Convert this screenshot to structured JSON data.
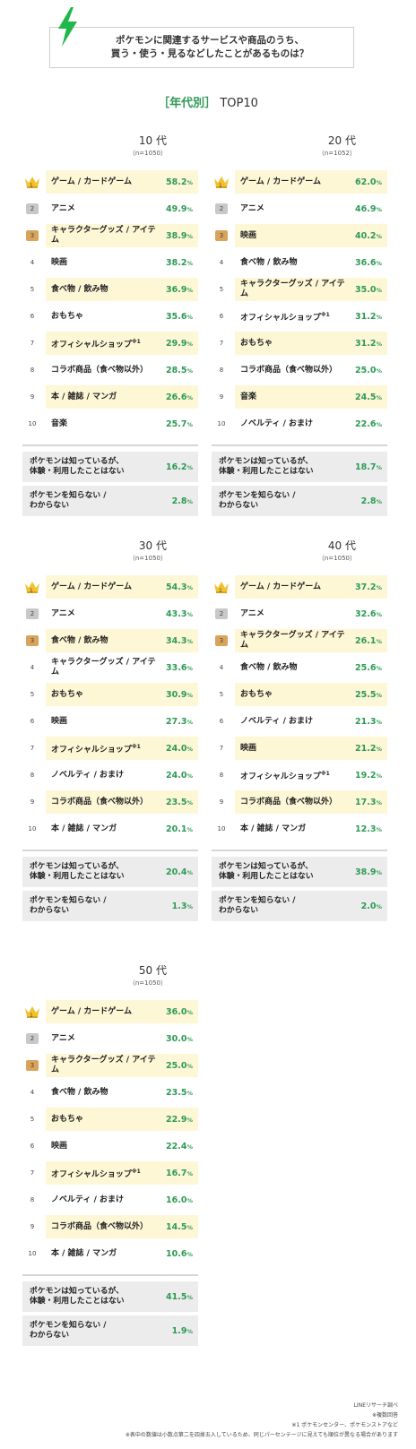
{
  "header": {
    "title_line1": "ポケモンに関連するサービスや商品のうち、",
    "title_line2": "買う・使う・見るなどしたことがあるものは？"
  },
  "section": {
    "bracket_open": "［",
    "bracket_text": "年代別",
    "bracket_close": "］",
    "suffix": "TOP10"
  },
  "blocks": [
    {
      "decade": "10 代",
      "n": "（n=1050）",
      "rows": [
        {
          "rank": "1",
          "label": "ゲーム / カードゲーム",
          "sup": "",
          "value": "58.2",
          "unit": "%",
          "hl": true
        },
        {
          "rank": "2",
          "label": "アニメ",
          "sup": "",
          "value": "49.9",
          "unit": "%",
          "hl": false
        },
        {
          "rank": "3",
          "label": "キャラクターグッズ / アイテム",
          "sup": "",
          "value": "38.9",
          "unit": "%",
          "hl": true
        },
        {
          "rank": "4",
          "label": "映画",
          "sup": "",
          "value": "38.2",
          "unit": "%",
          "hl": false
        },
        {
          "rank": "5",
          "label": "食べ物 / 飲み物",
          "sup": "",
          "value": "36.9",
          "unit": "%",
          "hl": true
        },
        {
          "rank": "6",
          "label": "おもちゃ",
          "sup": "",
          "value": "35.6",
          "unit": "%",
          "hl": false
        },
        {
          "rank": "7",
          "label": "オフィシャルショップ",
          "sup": "※1",
          "value": "29.9",
          "unit": "%",
          "hl": true
        },
        {
          "rank": "8",
          "label": "コラボ商品（食べ物以外）",
          "sup": "",
          "value": "28.5",
          "unit": "%",
          "hl": false
        },
        {
          "rank": "9",
          "label": "本 / 雑誌 / マンガ",
          "sup": "",
          "value": "26.6",
          "unit": "%",
          "hl": true
        },
        {
          "rank": "10",
          "label": "音楽",
          "sup": "",
          "value": "25.7",
          "unit": "%",
          "hl": false
        }
      ],
      "extra": [
        {
          "label1": "ポケモンは知っているが、",
          "label2": "体験・利用したことはない",
          "value": "16.2",
          "unit": "%"
        },
        {
          "label1": "ポケモンを知らない /",
          "label2": "わからない",
          "value": "2.8",
          "unit": "%"
        }
      ]
    },
    {
      "decade": "20 代",
      "n": "（n=1052）",
      "rows": [
        {
          "rank": "1",
          "label": "ゲーム / カードゲーム",
          "sup": "",
          "value": "62.0",
          "unit": "%",
          "hl": true
        },
        {
          "rank": "2",
          "label": "アニメ",
          "sup": "",
          "value": "46.9",
          "unit": "%",
          "hl": false
        },
        {
          "rank": "3",
          "label": "映画",
          "sup": "",
          "value": "40.2",
          "unit": "%",
          "hl": true
        },
        {
          "rank": "4",
          "label": "食べ物 / 飲み物",
          "sup": "",
          "value": "36.6",
          "unit": "%",
          "hl": false
        },
        {
          "rank": "5",
          "label": "キャラクターグッズ / アイテム",
          "sup": "",
          "value": "35.0",
          "unit": "%",
          "hl": true
        },
        {
          "rank": "6",
          "label": "オフィシャルショップ",
          "sup": "※1",
          "value": "31.2",
          "unit": "%",
          "hl": false
        },
        {
          "rank": "7",
          "label": "おもちゃ",
          "sup": "",
          "value": "31.2",
          "unit": "%",
          "hl": true
        },
        {
          "rank": "8",
          "label": "コラボ商品（食べ物以外）",
          "sup": "",
          "value": "25.0",
          "unit": "%",
          "hl": false
        },
        {
          "rank": "9",
          "label": "音楽",
          "sup": "",
          "value": "24.5",
          "unit": "%",
          "hl": true
        },
        {
          "rank": "10",
          "label": "ノベルティ / おまけ",
          "sup": "",
          "value": "22.6",
          "unit": "%",
          "hl": false
        }
      ],
      "extra": [
        {
          "label1": "ポケモンは知っているが、",
          "label2": "体験・利用したことはない",
          "value": "18.7",
          "unit": "%"
        },
        {
          "label1": "ポケモンを知らない /",
          "label2": "わからない",
          "value": "2.8",
          "unit": "%"
        }
      ]
    },
    {
      "decade": "30 代",
      "n": "（n=1050）",
      "rows": [
        {
          "rank": "1",
          "label": "ゲーム / カードゲーム",
          "sup": "",
          "value": "54.3",
          "unit": "%",
          "hl": true
        },
        {
          "rank": "2",
          "label": "アニメ",
          "sup": "",
          "value": "43.3",
          "unit": "%",
          "hl": false
        },
        {
          "rank": "3",
          "label": "食べ物 / 飲み物",
          "sup": "",
          "value": "34.3",
          "unit": "%",
          "hl": true
        },
        {
          "rank": "4",
          "label": "キャラクターグッズ / アイテム",
          "sup": "",
          "value": "33.6",
          "unit": "%",
          "hl": false
        },
        {
          "rank": "5",
          "label": "おもちゃ",
          "sup": "",
          "value": "30.9",
          "unit": "%",
          "hl": true
        },
        {
          "rank": "6",
          "label": "映画",
          "sup": "",
          "value": "27.3",
          "unit": "%",
          "hl": false
        },
        {
          "rank": "7",
          "label": "オフィシャルショップ",
          "sup": "※1",
          "value": "24.0",
          "unit": "%",
          "hl": true
        },
        {
          "rank": "8",
          "label": "ノベルティ / おまけ",
          "sup": "",
          "value": "24.0",
          "unit": "%",
          "hl": false
        },
        {
          "rank": "9",
          "label": "コラボ商品（食べ物以外）",
          "sup": "",
          "value": "23.5",
          "unit": "%",
          "hl": true
        },
        {
          "rank": "10",
          "label": "本 / 雑誌 / マンガ",
          "sup": "",
          "value": "20.1",
          "unit": "%",
          "hl": false
        }
      ],
      "extra": [
        {
          "label1": "ポケモンは知っているが、",
          "label2": "体験・利用したことはない",
          "value": "20.4",
          "unit": "%"
        },
        {
          "label1": "ポケモンを知らない /",
          "label2": "わからない",
          "value": "1.3",
          "unit": "%"
        }
      ]
    },
    {
      "decade": "40 代",
      "n": "（n=1050）",
      "rows": [
        {
          "rank": "1",
          "label": "ゲーム / カードゲーム",
          "sup": "",
          "value": "37.2",
          "unit": "%",
          "hl": true
        },
        {
          "rank": "2",
          "label": "アニメ",
          "sup": "",
          "value": "32.6",
          "unit": "%",
          "hl": false
        },
        {
          "rank": "3",
          "label": "キャラクターグッズ / アイテム",
          "sup": "",
          "value": "26.1",
          "unit": "%",
          "hl": true
        },
        {
          "rank": "4",
          "label": "食べ物 / 飲み物",
          "sup": "",
          "value": "25.6",
          "unit": "%",
          "hl": false
        },
        {
          "rank": "5",
          "label": "おもちゃ",
          "sup": "",
          "value": "25.5",
          "unit": "%",
          "hl": true
        },
        {
          "rank": "6",
          "label": "ノベルティ / おまけ",
          "sup": "",
          "value": "21.3",
          "unit": "%",
          "hl": false
        },
        {
          "rank": "7",
          "label": "映画",
          "sup": "",
          "value": "21.2",
          "unit": "%",
          "hl": true
        },
        {
          "rank": "8",
          "label": "オフィシャルショップ",
          "sup": "※1",
          "value": "19.2",
          "unit": "%",
          "hl": false
        },
        {
          "rank": "9",
          "label": "コラボ商品（食べ物以外）",
          "sup": "",
          "value": "17.3",
          "unit": "%",
          "hl": true
        },
        {
          "rank": "10",
          "label": "本 / 雑誌 / マンガ",
          "sup": "",
          "value": "12.3",
          "unit": "%",
          "hl": false
        }
      ],
      "extra": [
        {
          "label1": "ポケモンは知っているが、",
          "label2": "体験・利用したことはない",
          "value": "38.9",
          "unit": "%"
        },
        {
          "label1": "ポケモンを知らない /",
          "label2": "わからない",
          "value": "2.0",
          "unit": "%"
        }
      ]
    },
    {
      "decade": "50 代",
      "n": "（n=1050）",
      "rows": [
        {
          "rank": "1",
          "label": "ゲーム / カードゲーム",
          "sup": "",
          "value": "36.0",
          "unit": "%",
          "hl": true
        },
        {
          "rank": "2",
          "label": "アニメ",
          "sup": "",
          "value": "30.0",
          "unit": "%",
          "hl": false
        },
        {
          "rank": "3",
          "label": "キャラクターグッズ / アイテム",
          "sup": "",
          "value": "25.0",
          "unit": "%",
          "hl": true
        },
        {
          "rank": "4",
          "label": "食べ物 / 飲み物",
          "sup": "",
          "value": "23.5",
          "unit": "%",
          "hl": false
        },
        {
          "rank": "5",
          "label": "おもちゃ",
          "sup": "",
          "value": "22.9",
          "unit": "%",
          "hl": true
        },
        {
          "rank": "6",
          "label": "映画",
          "sup": "",
          "value": "22.4",
          "unit": "%",
          "hl": false
        },
        {
          "rank": "7",
          "label": "オフィシャルショップ",
          "sup": "※1",
          "value": "16.7",
          "unit": "%",
          "hl": true
        },
        {
          "rank": "8",
          "label": "ノベルティ / おまけ",
          "sup": "",
          "value": "16.0",
          "unit": "%",
          "hl": false
        },
        {
          "rank": "9",
          "label": "コラボ商品（食べ物以外）",
          "sup": "",
          "value": "14.5",
          "unit": "%",
          "hl": true
        },
        {
          "rank": "10",
          "label": "本 / 雑誌 / マンガ",
          "sup": "",
          "value": "10.6",
          "unit": "%",
          "hl": false
        }
      ],
      "extra": [
        {
          "label1": "ポケモンは知っているが、",
          "label2": "体験・利用したことはない",
          "value": "41.5",
          "unit": "%"
        },
        {
          "label1": "ポケモンを知らない /",
          "label2": "わからない",
          "value": "1.9",
          "unit": "%"
        }
      ]
    }
  ],
  "footer": {
    "line1": "LINEリサーチ調べ",
    "line2": "※複数回答",
    "line3": "※1 ポケモンセンター、ポケモンストアなど",
    "line4": "※表中の数値は小数点第二を四捨五入しているため、同じパーセンテージに見えても順位が異なる場合があります"
  },
  "colors": {
    "accent": "#2e9a55",
    "highlight": "#fdf7d6",
    "gray": "#ececec",
    "gold": "#f2c12e",
    "bronze": "#d9a45a",
    "silver": "#c8c8c8"
  }
}
